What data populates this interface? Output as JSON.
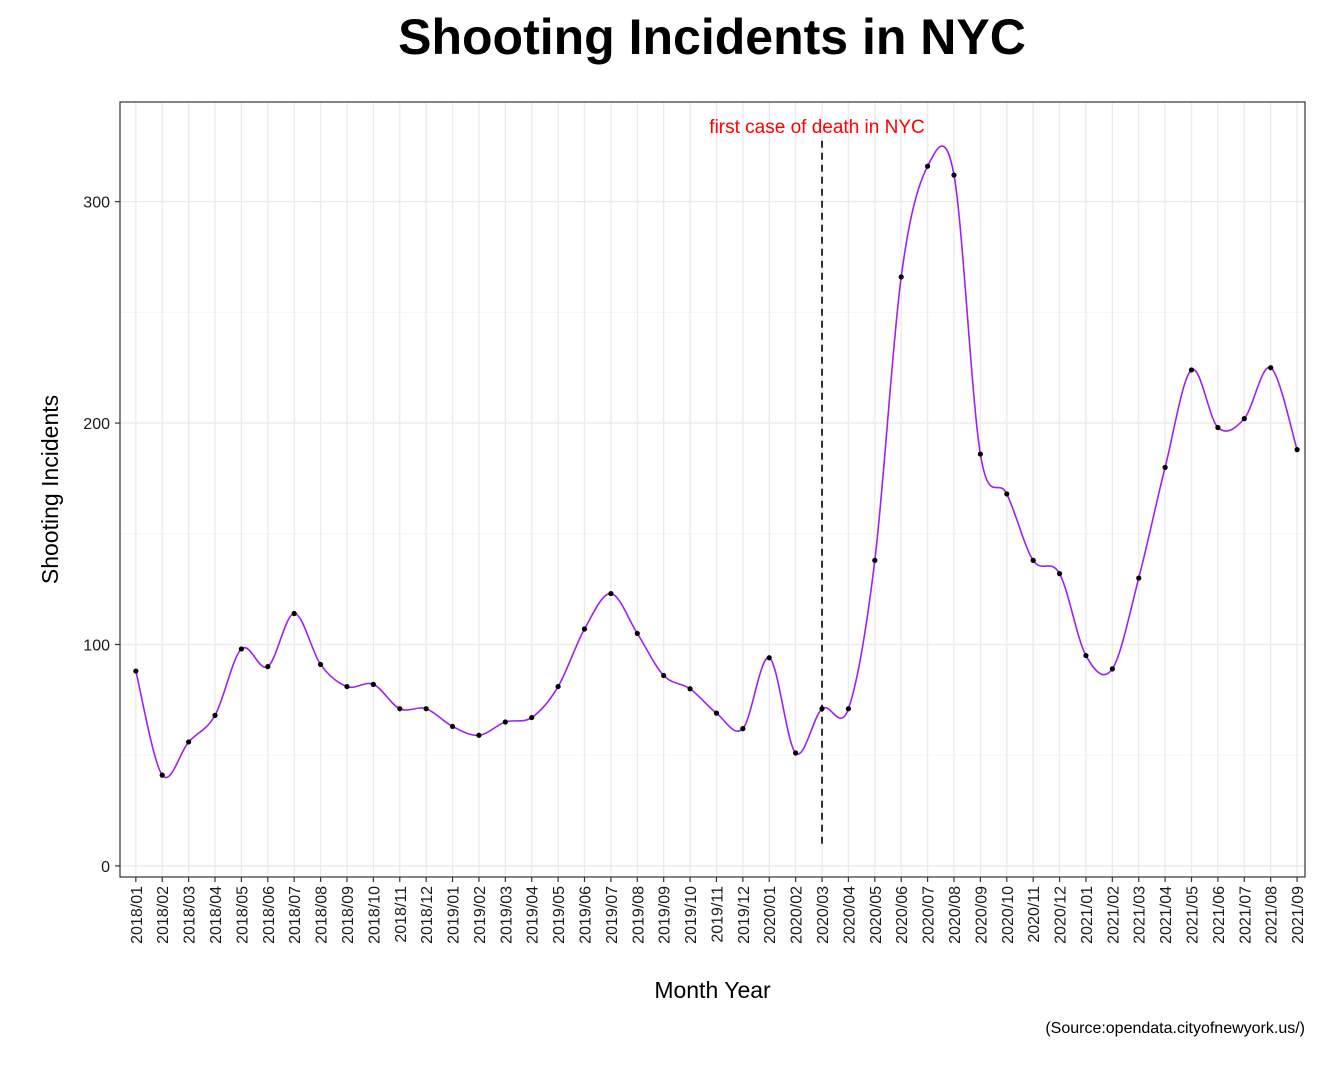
{
  "chart_data": {
    "type": "line",
    "title": "Shooting Incidents in NYC",
    "xlabel": "Month Year",
    "ylabel": "Shooting Incidents",
    "caption": "(Source:opendata.cityofnewyork.us/)",
    "ylim": [
      -5,
      345
    ],
    "y_ticks": [
      0,
      100,
      200,
      300
    ],
    "grid": true,
    "line_color": "#a020f0",
    "point_color": "#000000",
    "annotation": {
      "label": "first case of death in NYC",
      "x": "2020/03",
      "color": "#ff0000",
      "line_style": "dashed"
    },
    "x": [
      "2018/01",
      "2018/02",
      "2018/03",
      "2018/04",
      "2018/05",
      "2018/06",
      "2018/07",
      "2018/08",
      "2018/09",
      "2018/10",
      "2018/11",
      "2018/12",
      "2019/01",
      "2019/02",
      "2019/03",
      "2019/04",
      "2019/05",
      "2019/06",
      "2019/07",
      "2019/08",
      "2019/09",
      "2019/10",
      "2019/11",
      "2019/12",
      "2020/01",
      "2020/02",
      "2020/03",
      "2020/04",
      "2020/05",
      "2020/06",
      "2020/07",
      "2020/08",
      "2020/09",
      "2020/10",
      "2020/11",
      "2020/12",
      "2021/01",
      "2021/02",
      "2021/03",
      "2021/04",
      "2021/05",
      "2021/06",
      "2021/07",
      "2021/08",
      "2021/09"
    ],
    "values": [
      88,
      41,
      56,
      68,
      98,
      90,
      114,
      91,
      81,
      82,
      71,
      71,
      63,
      59,
      65,
      67,
      81,
      107,
      123,
      105,
      86,
      80,
      69,
      62,
      94,
      51,
      71,
      71,
      138,
      266,
      316,
      312,
      186,
      168,
      138,
      132,
      95,
      89,
      130,
      180,
      224,
      198,
      202,
      225,
      188
    ]
  }
}
